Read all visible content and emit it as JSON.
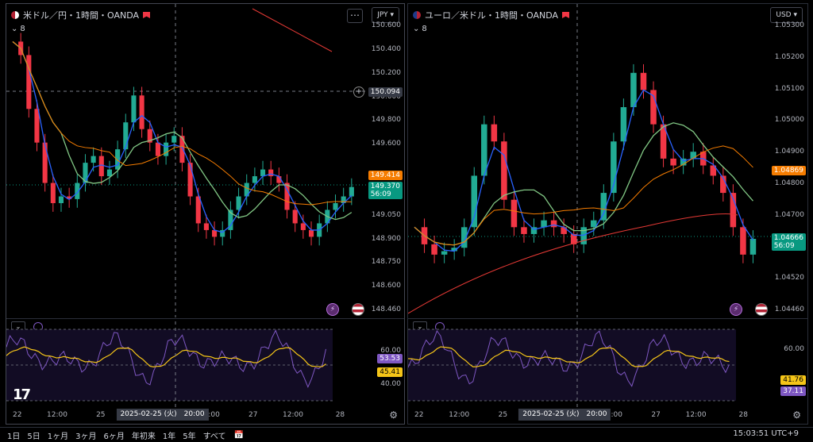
{
  "colors": {
    "up": "#22ab94",
    "down": "#f23645",
    "ma_fast": "#2962ff",
    "ma_mid": "#81c784",
    "ma_slow": "#f57c00",
    "ma_long": "#e53935",
    "rsi": "#7e57c2",
    "rsi_ma": "#f5c518"
  },
  "left": {
    "title": "米ドル／円・1時間・OANDA",
    "indicator_count": "8",
    "currency": "JPY",
    "y_ticks": [
      "150.600",
      "150.400",
      "150.200",
      "150.000",
      "149.800",
      "149.600",
      "149.414",
      "149.200",
      "149.050",
      "148.900",
      "148.750",
      "148.600",
      "148.460"
    ],
    "crosshair_price": "150.094",
    "ma_price": "149.414",
    "last_price": "149.370",
    "countdown": "56:09",
    "rsi_value": "53.53",
    "rsi_ma_value": "45.41",
    "rsi_ticks": [
      "60.00",
      "40.00"
    ],
    "x_ticks": [
      "22",
      "12:00",
      "25",
      "12:00",
      "27",
      "12:00",
      "28"
    ],
    "x_highlight": "2025-02-25 (火)　20:00"
  },
  "right": {
    "title": "ユーロ／米ドル・1時間・OANDA",
    "indicator_count": "8",
    "currency": "USD",
    "y_ticks": [
      "1.05300",
      "1.05200",
      "1.05100",
      "1.05000",
      "1.04900",
      "1.04800",
      "1.04700",
      "1.04580",
      "1.04520",
      "1.04460"
    ],
    "ma_price": "1.04869",
    "last_price": "1.04666",
    "countdown": "56:09",
    "rsi_value": "41.76",
    "rsi_ma_value": "37.11",
    "rsi_ticks": [
      "60.00",
      "40.00"
    ],
    "x_ticks": [
      "22",
      "12:00",
      "25",
      "12:00",
      "27",
      "12:00",
      "28"
    ],
    "x_highlight": "2025-02-25 (火)　20:00"
  },
  "bottom": {
    "timeframes": [
      "1日",
      "5日",
      "1ヶ月",
      "3ヶ月",
      "6ヶ月",
      "年初来",
      "1年",
      "5年",
      "すべて"
    ],
    "clock": "15:03:51 UTC+9"
  },
  "chart_data": [
    {
      "type": "line",
      "title": "米ドル／円・1時間・OANDA",
      "series": [
        {
          "values": [
            150.45,
            150.35,
            149.95,
            149.7,
            149.4,
            149.25,
            149.3,
            149.28,
            149.4,
            149.55,
            149.6,
            149.45,
            149.5,
            149.65,
            149.85,
            150.05,
            149.8,
            149.7,
            149.6,
            149.7,
            149.75,
            149.55,
            149.3,
            149.1,
            149.05,
            149.0,
            149.05,
            149.2,
            149.3,
            149.4,
            149.45,
            149.5,
            149.45,
            149.4,
            149.2,
            149.1,
            149.05,
            149.0,
            149.1,
            149.2,
            149.25,
            149.3,
            149.37
          ]
        }
      ],
      "ylim": [
        148.46,
        150.6
      ]
    },
    {
      "type": "line",
      "title": "ユーロ／米ドル・1時間・OANDA",
      "series": [
        {
          "values": [
            1.047,
            1.0465,
            1.0462,
            1.0463,
            1.0464,
            1.047,
            1.0485,
            1.05,
            1.0495,
            1.0478,
            1.047,
            1.0468,
            1.047,
            1.0472,
            1.047,
            1.0468,
            1.0465,
            1.047,
            1.0472,
            1.048,
            1.0495,
            1.0505,
            1.0515,
            1.051,
            1.05,
            1.049,
            1.0488,
            1.049,
            1.0492,
            1.0488,
            1.0485,
            1.048,
            1.047,
            1.0462,
            1.04666
          ]
        }
      ],
      "ylim": [
        1.0446,
        1.053
      ]
    }
  ]
}
